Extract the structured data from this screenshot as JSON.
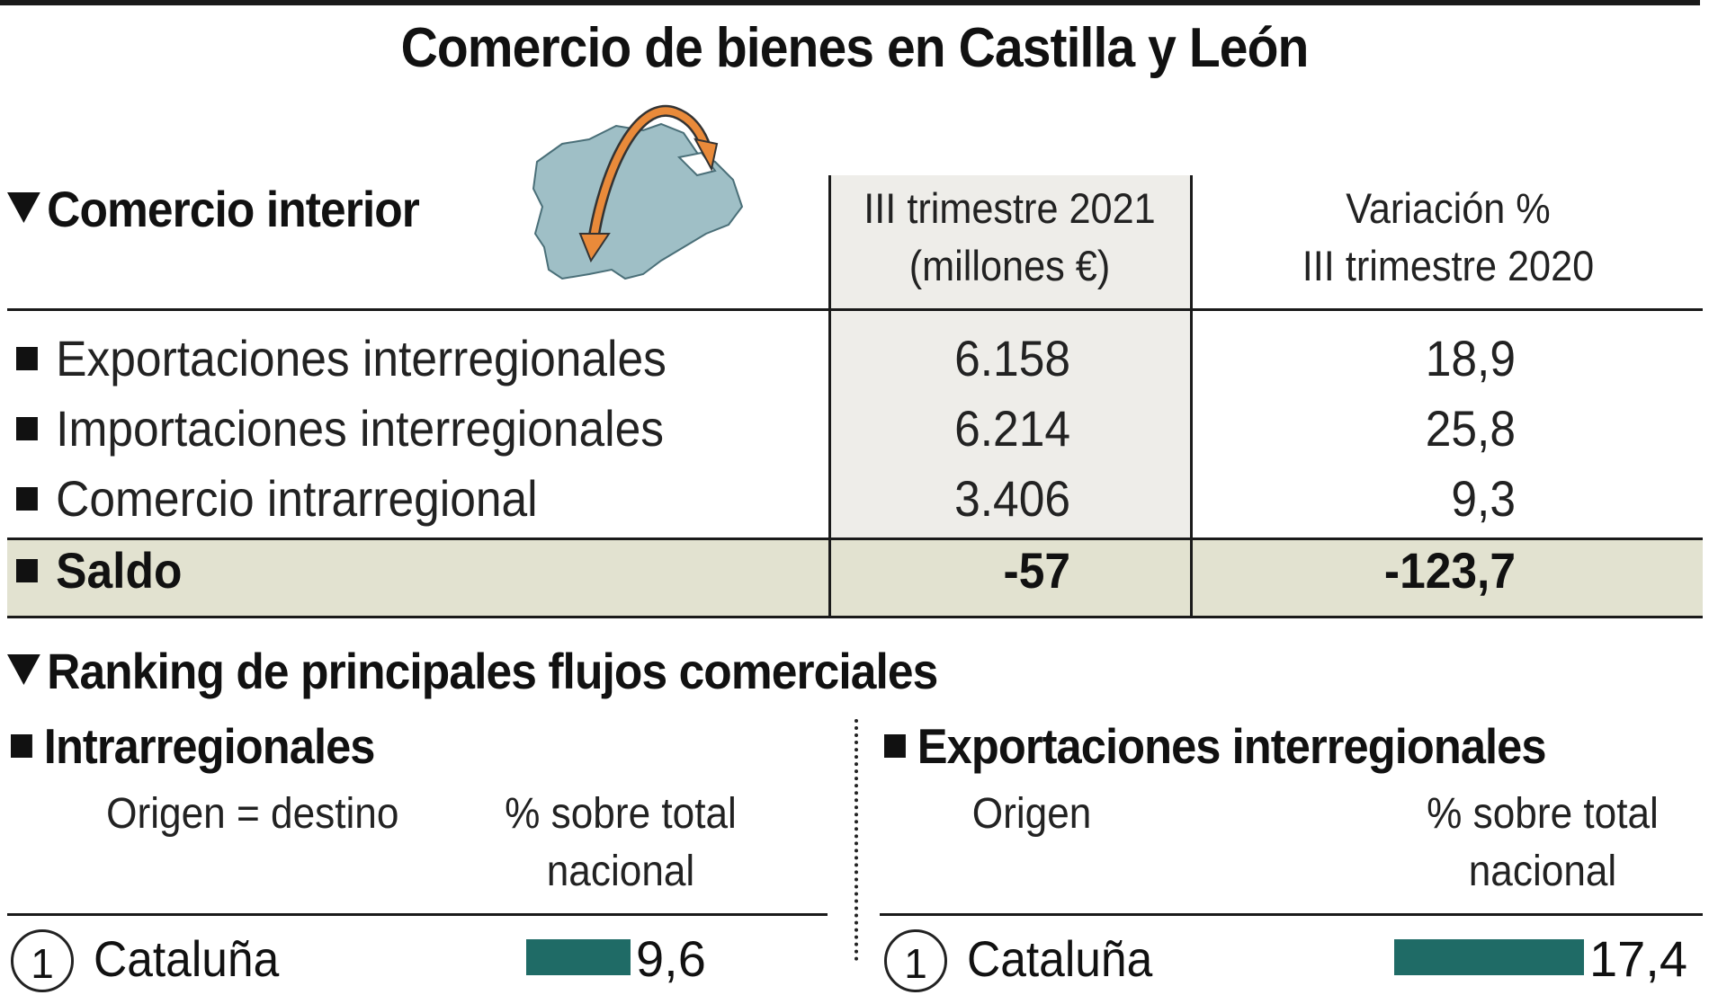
{
  "title": "Comercio de bienes en Castilla y León",
  "interior": {
    "heading": "Comercio interior",
    "col1_line1": "III trimestre 2021",
    "col1_line2": "(millones €)",
    "col2_line1": "Variación %",
    "col2_line2": "III trimestre 2020",
    "rows": [
      {
        "label": "Exportaciones interregionales",
        "value": "6.158",
        "variation": "18,9"
      },
      {
        "label": "Importaciones interregionales",
        "value": "6.214",
        "variation": "25,8"
      },
      {
        "label": "Comercio intrarregional",
        "value": "3.406",
        "variation": "9,3"
      }
    ],
    "saldo": {
      "label": "Saldo",
      "value": "-57",
      "variation": "-123,7"
    }
  },
  "ranking": {
    "heading": "Ranking de principales flujos comerciales",
    "intra": {
      "heading": "Intrarregionales",
      "col_origin": "Origen = destino",
      "col_pct_line1": "% sobre total",
      "col_pct_line2": "nacional",
      "items": [
        {
          "rank": "1",
          "name": "Cataluña",
          "value": "9,6",
          "pct": 9.6
        }
      ]
    },
    "export": {
      "heading": "Exportaciones interregionales",
      "col_origin": "Origen",
      "col_pct_line1": "% sobre total",
      "col_pct_line2": "nacional",
      "items": [
        {
          "rank": "1",
          "name": "Cataluña",
          "value": "17,4",
          "pct": 17.4
        }
      ]
    }
  },
  "colors": {
    "bar": "#1f6b66",
    "map_fill": "#9fbfc6",
    "arrow": "#e98a3a",
    "saldo_bg": "#e2e2d0"
  },
  "icons": {
    "map": "castilla-leon-map-icon",
    "arrow": "curved-double-arrow-icon"
  }
}
